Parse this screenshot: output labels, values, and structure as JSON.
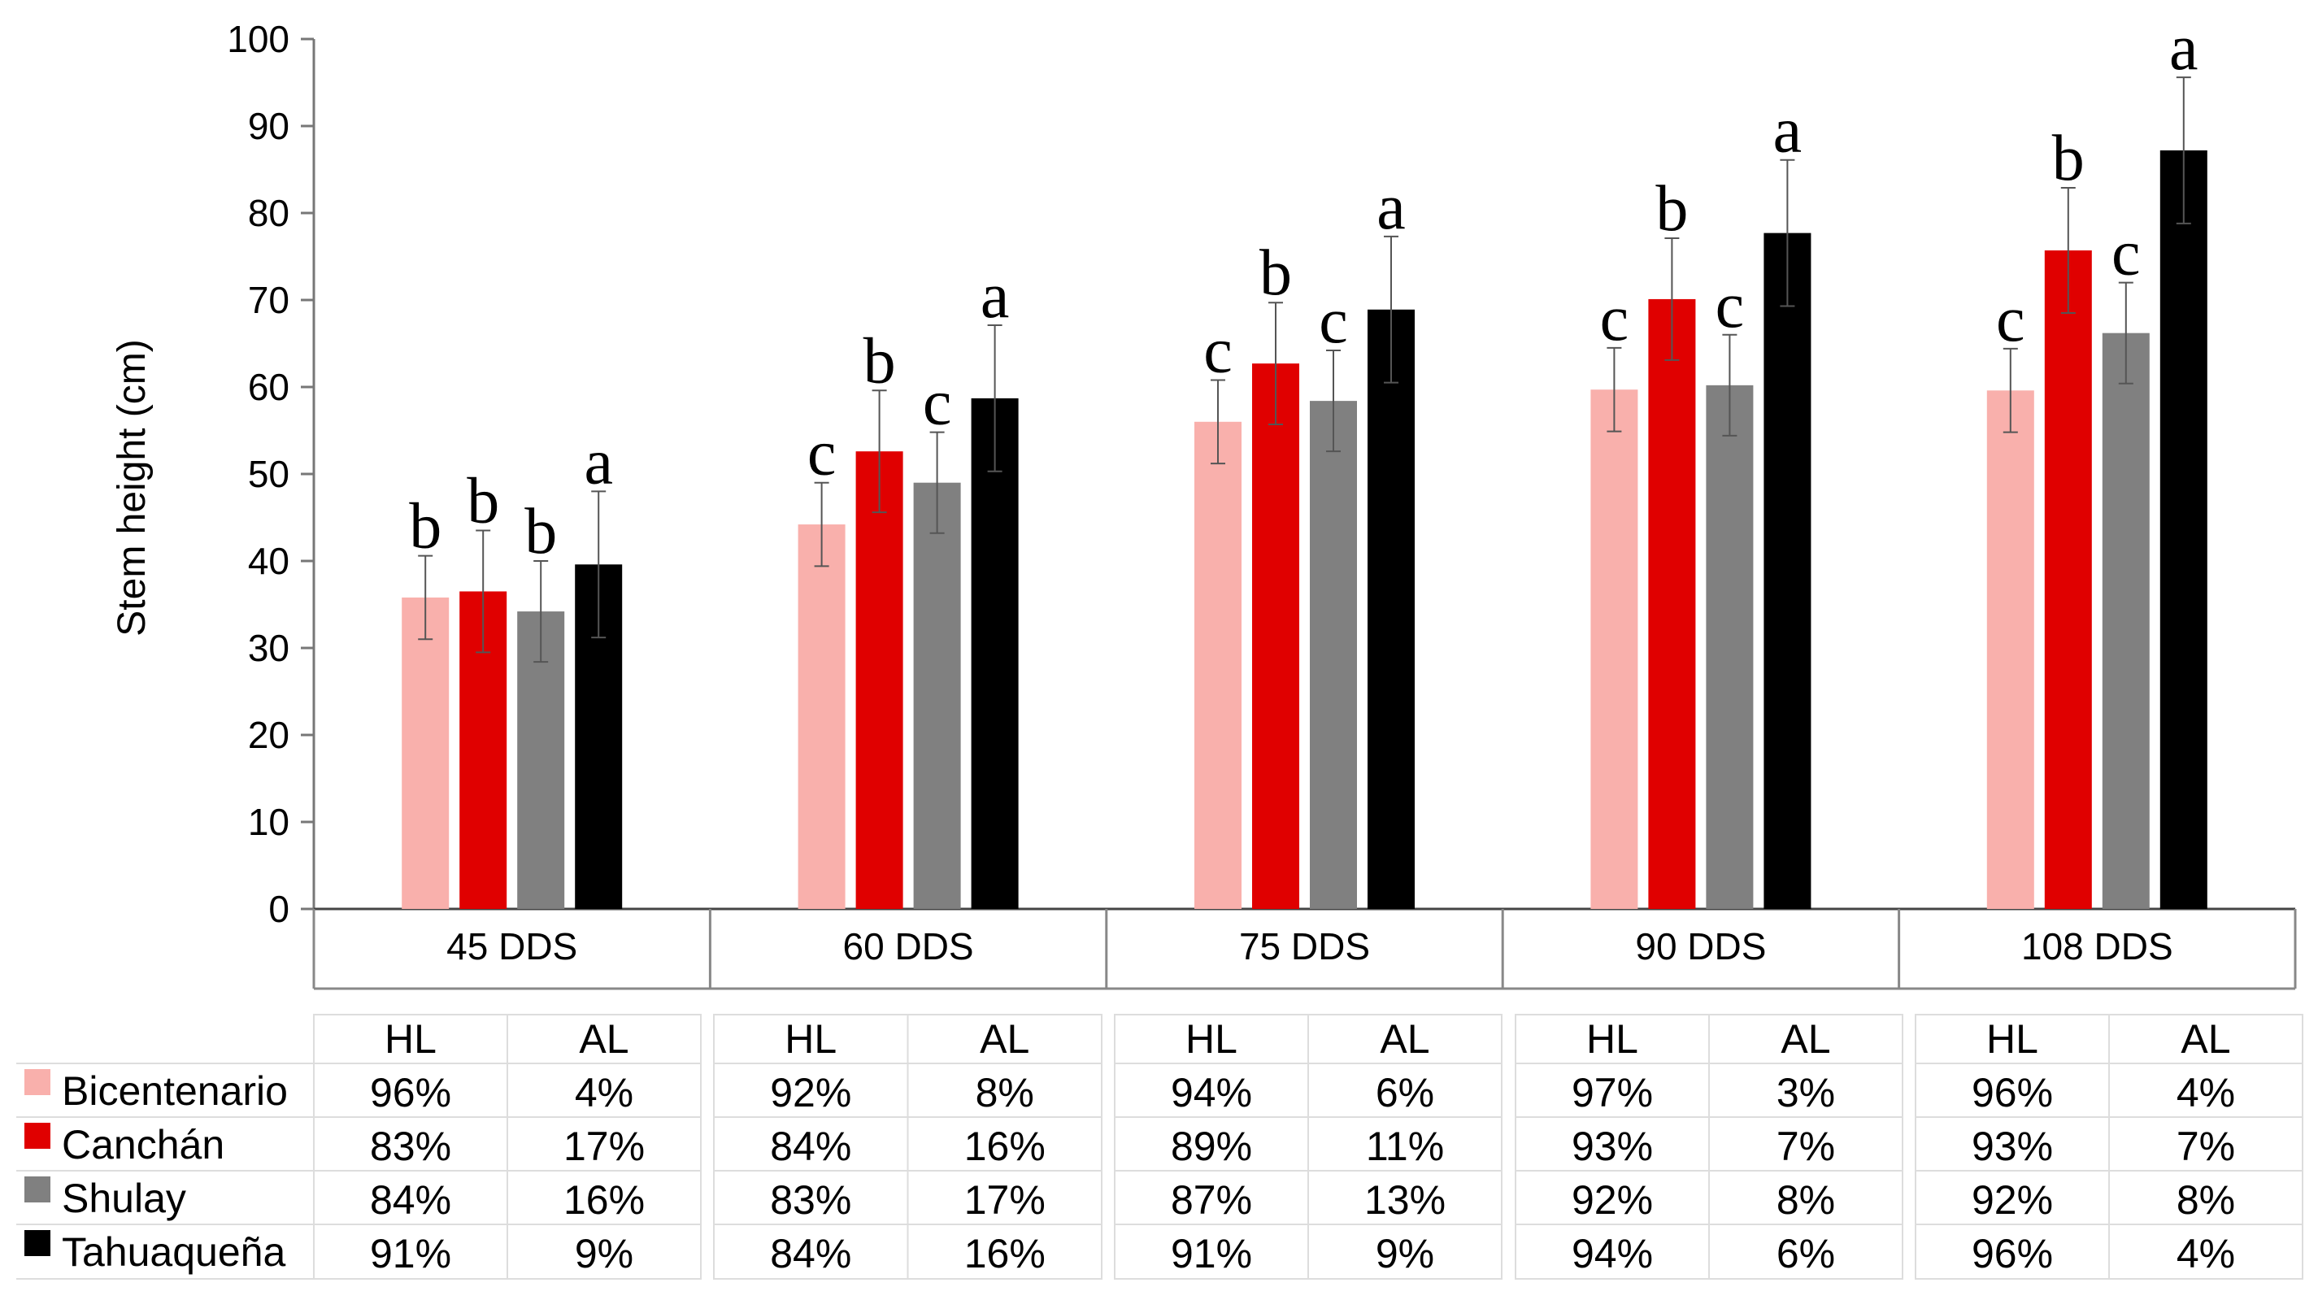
{
  "chart_data": {
    "type": "bar",
    "title": "",
    "xlabel": "",
    "ylabel": "Stem height (cm)",
    "ylim": [
      0,
      100
    ],
    "yticks": [
      0,
      10,
      20,
      30,
      40,
      50,
      60,
      70,
      80,
      90,
      100
    ],
    "categories": [
      "45 DDS",
      "60 DDS",
      "75 DDS",
      "90 DDS",
      "108 DDS"
    ],
    "series": [
      {
        "name": "Bicentenario",
        "color": "#f9b0ac",
        "values": [
          35.8,
          44.2,
          56.0,
          59.7,
          59.6
        ],
        "errors": [
          4.8,
          4.8,
          4.8,
          4.8,
          4.8
        ],
        "letters": [
          "b",
          "c",
          "c",
          "c",
          "c"
        ],
        "HL": [
          "96%",
          "92%",
          "94%",
          "97%",
          "96%"
        ],
        "AL": [
          "4%",
          "8%",
          "6%",
          "3%",
          "4%"
        ]
      },
      {
        "name": "Canchán",
        "color": "#e00000",
        "values": [
          36.5,
          52.6,
          62.7,
          70.1,
          75.7
        ],
        "errors": [
          7.0,
          7.0,
          7.0,
          7.0,
          7.2
        ],
        "letters": [
          "b",
          "b",
          "b",
          "b",
          "b"
        ],
        "HL": [
          "83%",
          "84%",
          "89%",
          "93%",
          "93%"
        ],
        "AL": [
          "17%",
          "16%",
          "11%",
          "7%",
          "7%"
        ]
      },
      {
        "name": "Shulay",
        "color": "#808080",
        "values": [
          34.2,
          49.0,
          58.4,
          60.2,
          66.2
        ],
        "errors": [
          5.8,
          5.8,
          5.8,
          5.8,
          5.8
        ],
        "letters": [
          "b",
          "c",
          "c",
          "c",
          "c"
        ],
        "HL": [
          "84%",
          "83%",
          "87%",
          "92%",
          "92%"
        ],
        "AL": [
          "16%",
          "17%",
          "13%",
          "8%",
          "8%"
        ]
      },
      {
        "name": "Tahuaqueña",
        "color": "#000000",
        "values": [
          39.6,
          58.7,
          68.9,
          77.7,
          87.2
        ],
        "errors": [
          8.4,
          8.4,
          8.4,
          8.4,
          8.4
        ],
        "letters": [
          "a",
          "a",
          "a",
          "a",
          "a"
        ],
        "HL": [
          "91%",
          "84%",
          "91%",
          "94%",
          "96%"
        ],
        "AL": [
          "9%",
          "16%",
          "9%",
          "6%",
          "4%"
        ]
      }
    ],
    "table_headers": {
      "hl": "HL",
      "al": "AL"
    }
  }
}
